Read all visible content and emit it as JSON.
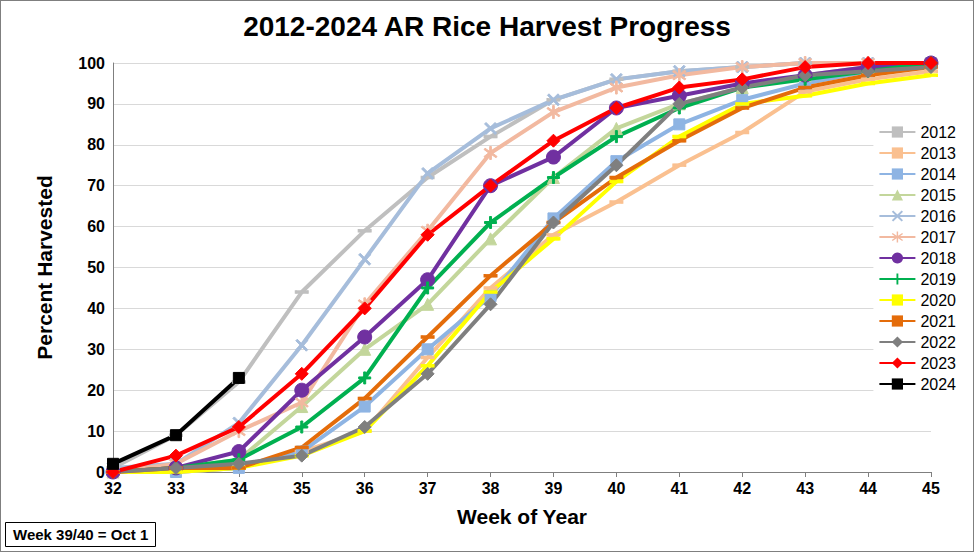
{
  "chart_data": {
    "type": "line",
    "title": "2012-2024 AR Rice Harvest Progress",
    "x_label": "Week of Year",
    "y_label": "Percent Harvested",
    "annotation": "Week 39/40 = Oct 1",
    "x": [
      32,
      33,
      34,
      35,
      36,
      37,
      38,
      39,
      40,
      41,
      42,
      43,
      44,
      45
    ],
    "xlim": [
      32,
      45
    ],
    "xticks": [
      32,
      33,
      34,
      35,
      36,
      37,
      38,
      39,
      40,
      41,
      42,
      43,
      44,
      45
    ],
    "ylim": [
      0,
      100
    ],
    "yticks": [
      0,
      10,
      20,
      30,
      40,
      50,
      60,
      70,
      80,
      90,
      100
    ],
    "grid": true,
    "legend": "right",
    "series": [
      {
        "name": "2012",
        "color": "#bfbfbf",
        "marker": "dash",
        "values": [
          1,
          9,
          22,
          44,
          59,
          72,
          82,
          91,
          96,
          98,
          99,
          100,
          100,
          100
        ]
      },
      {
        "name": "2013",
        "color": "#fac090",
        "marker": "dash",
        "values": [
          0,
          0,
          1,
          5,
          10,
          28,
          45,
          58,
          66,
          75,
          83,
          93,
          96,
          98
        ]
      },
      {
        "name": "2014",
        "color": "#8eb4e3",
        "marker": "square",
        "values": [
          0,
          0,
          1,
          5,
          16,
          30,
          43,
          62,
          76,
          85,
          91,
          95,
          98,
          100
        ]
      },
      {
        "name": "2015",
        "color": "#c3d69b",
        "marker": "triangle",
        "values": [
          0,
          1,
          3,
          16,
          30,
          41,
          57,
          72,
          84,
          90,
          94,
          97,
          99,
          100
        ]
      },
      {
        "name": "2016",
        "color": "#a6bddb",
        "marker": "x",
        "values": [
          1,
          2,
          12,
          31,
          52,
          73,
          84,
          91,
          96,
          98,
          99,
          100,
          100,
          100
        ]
      },
      {
        "name": "2017",
        "color": "#f2b9a0",
        "marker": "asterisk",
        "values": [
          0,
          2,
          10,
          17,
          41,
          59,
          78,
          88,
          94,
          97,
          99,
          100,
          100,
          100
        ]
      },
      {
        "name": "2018",
        "color": "#7030a0",
        "marker": "circle",
        "values": [
          0,
          1,
          5,
          20,
          33,
          47,
          70,
          77,
          89,
          92,
          95,
          97,
          99,
          100
        ]
      },
      {
        "name": "2019",
        "color": "#00b050",
        "marker": "plus",
        "values": [
          0,
          1,
          3,
          11,
          23,
          45,
          61,
          72,
          82,
          89,
          94,
          96,
          98,
          100
        ]
      },
      {
        "name": "2020",
        "color": "#ffff00",
        "marker": "dash",
        "values": [
          0,
          0,
          1,
          4,
          10,
          26,
          44,
          57,
          71,
          82,
          90,
          92,
          95,
          97
        ]
      },
      {
        "name": "2021",
        "color": "#e46c0a",
        "marker": "dash",
        "values": [
          0,
          1,
          1,
          6,
          18,
          33,
          48,
          61,
          72,
          81,
          89,
          94,
          97,
          99
        ]
      },
      {
        "name": "2022",
        "color": "#7f7f7f",
        "marker": "diamond",
        "values": [
          0,
          1,
          2,
          4,
          11,
          24,
          41,
          61,
          75,
          90,
          94,
          97,
          98,
          99
        ]
      },
      {
        "name": "2023",
        "color": "#ff0000",
        "marker": "diamond",
        "values": [
          0,
          4,
          11,
          24,
          40,
          58,
          70,
          81,
          89,
          94,
          96,
          99,
          100,
          100
        ]
      },
      {
        "name": "2024",
        "color": "#000000",
        "marker": "square",
        "values": [
          2,
          9,
          23,
          null,
          null,
          null,
          null,
          null,
          null,
          null,
          null,
          null,
          null,
          null
        ]
      }
    ]
  }
}
